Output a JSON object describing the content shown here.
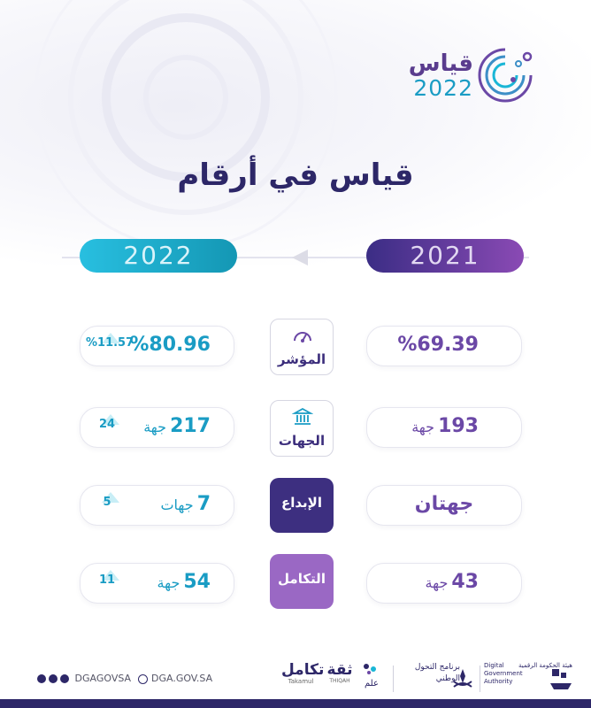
{
  "brand": {
    "name_ar": "قياس",
    "year": "2022"
  },
  "title": "قياس في أرقام",
  "years": {
    "current": "2022",
    "previous": "2021"
  },
  "rows": [
    {
      "label": "المؤشر",
      "icon": "gauge-icon",
      "current": "%80.96",
      "current_unit": "",
      "delta": "%11.57",
      "previous": "%69.39",
      "previous_unit": ""
    },
    {
      "label": "الجهات",
      "icon": "building-icon",
      "current": "217",
      "current_unit": "جهة",
      "delta": "24",
      "previous": "193",
      "previous_unit": "جهة"
    },
    {
      "label": "الإبداع",
      "current": "7",
      "current_unit": "جهات",
      "delta": "5",
      "previous": "جهتان",
      "previous_unit": ""
    },
    {
      "label": "التكامل",
      "current": "54",
      "current_unit": "جهة",
      "delta": "11",
      "previous": "43",
      "previous_unit": "جهة"
    }
  ],
  "footer": {
    "social_handle": "DGAGOVSA",
    "website": "DGA.GOV.SA",
    "partners": {
      "takamul_ar": "تكامل",
      "takamul_en": "Takamul",
      "thiqah_ar": "ثقة",
      "thiqah_en": "THIQAH",
      "elm_ar": "علم",
      "program_ar": "برنامج التحول",
      "program_ar2": "الوطني",
      "dga_ar": "هيئة الحكومة الرقمية",
      "dga_en1": "Digital",
      "dga_en2": "Government",
      "dga_en3": "Authority"
    }
  },
  "colors": {
    "navy": "#2d2768",
    "teal": "#1a9cc4",
    "purple": "#6b48a6",
    "light_purple": "#9a68c4"
  }
}
